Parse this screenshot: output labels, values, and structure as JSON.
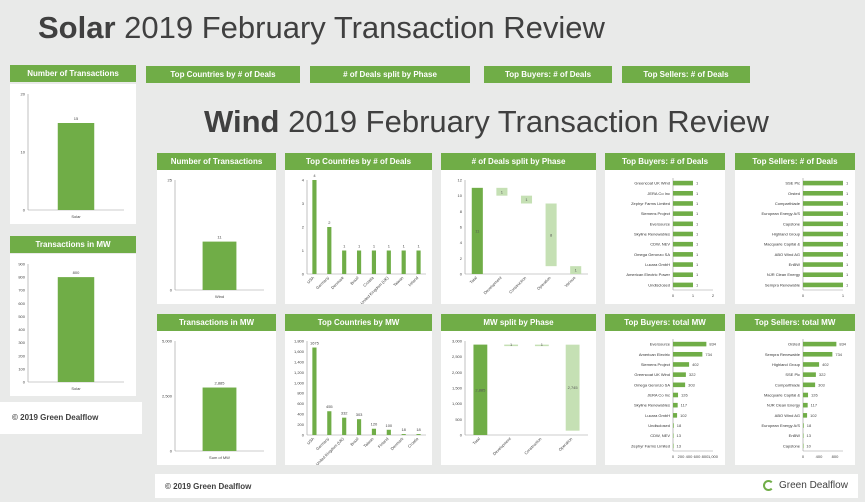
{
  "solar": {
    "title_bold": "Solar",
    "title_rest": " 2019 February Transaction Review",
    "headers": [
      "Number of Transactions",
      "Top Countries by # of Deals",
      "# of Deals split by Phase",
      "Top Buyers: # of Deals",
      "Top Sellers: # of Deals",
      "Transactions in MW"
    ],
    "footer": "© 2019 Green Dealflow"
  },
  "wind": {
    "title_bold": "Wind",
    "title_rest": " 2019 February Transaction Review",
    "headers": [
      "Number of Transactions",
      "Top Countries by # of Deals",
      "# of Deals split by Phase",
      "Top Buyers: # of Deals",
      "Top Sellers: # of Deals",
      "Transactions in MW",
      "Top Countries by MW",
      "MW split by Phase",
      "Top Buyers: total MW",
      "Top Sellers: total MW"
    ],
    "footer": "© 2019 Green Dealflow",
    "brand": "Green Dealflow"
  },
  "colors": {
    "bar": "#70ad47",
    "bar_light": "#c5e0b4",
    "header": "#70ad47"
  },
  "chart_data": [
    {
      "id": "solar_count",
      "type": "bar",
      "categories": [
        "Solar"
      ],
      "values": [
        15
      ],
      "ylim": [
        0,
        20
      ],
      "yticks": [
        0,
        10,
        20
      ]
    },
    {
      "id": "solar_mw",
      "type": "bar",
      "categories": [
        "Solar"
      ],
      "values": [
        800
      ],
      "ylim": [
        0,
        900
      ],
      "yticks": [
        0,
        100,
        200,
        300,
        400,
        500,
        600,
        700,
        800,
        900
      ]
    },
    {
      "id": "wind_count",
      "type": "bar",
      "categories": [
        "Wind"
      ],
      "values": [
        11
      ],
      "ylim": [
        0,
        25
      ],
      "yticks": [
        0,
        25
      ]
    },
    {
      "id": "wind_countries",
      "type": "bar",
      "categories": [
        "USA",
        "Germany",
        "Denmark",
        "Brazil",
        "Croatia",
        "United Kingdom (UK)",
        "Taiwan",
        "Ireland"
      ],
      "values": [
        4,
        2,
        1,
        1,
        1,
        1,
        1,
        1
      ],
      "ylim": [
        0,
        4
      ],
      "yticks": [
        0,
        1,
        2,
        3,
        4
      ]
    },
    {
      "id": "wind_phase",
      "type": "waterfall",
      "categories": [
        "Total",
        "Development",
        "Construction",
        "Operation",
        "Various"
      ],
      "values": [
        11,
        1,
        1,
        8,
        1
      ],
      "ylim": [
        0,
        12
      ],
      "yticks": [
        0,
        2,
        4,
        6,
        8,
        10,
        12
      ]
    },
    {
      "id": "wind_buyers",
      "type": "bar",
      "orientation": "horizontal",
      "categories": [
        "Greencoat UK Wind",
        "JERA Co Inc",
        "Zephyr Farms Limited",
        "Siemens Project",
        "Eversource",
        "Skyline Renewables",
        "CDW, NEV",
        "Omega Geronzo SA",
        "Lucara GmbH",
        "American Electric Power",
        "Undisclosed"
      ],
      "values": [
        1,
        1,
        1,
        1,
        1,
        1,
        1,
        1,
        1,
        1,
        1
      ],
      "xlim": [
        0,
        2
      ],
      "xticks": [
        0,
        1,
        2
      ]
    },
    {
      "id": "wind_sellers",
      "type": "bar",
      "orientation": "horizontal",
      "categories": [
        "SSE Plc",
        "Orsted",
        "Comparthiade",
        "European Energy A/S",
        "Capstone",
        "Highland Group",
        "Macquarie Capital &",
        "ABO Wind AG",
        "EnBW",
        "NJR Clean Energy",
        "Sempra Renewable"
      ],
      "values": [
        1,
        1,
        1,
        1,
        1,
        1,
        1,
        1,
        1,
        1,
        1
      ],
      "xlim": [
        0,
        1
      ],
      "xticks": [
        0,
        1
      ]
    },
    {
      "id": "wind_mw",
      "type": "bar",
      "categories": [
        "Sum of MW"
      ],
      "values": [
        2885
      ],
      "value_labels": [
        "2,885"
      ],
      "ylim": [
        0,
        5000
      ],
      "yticks": [
        0,
        2500,
        5000
      ],
      "ytick_labels": [
        "0",
        "2,500",
        "5,000"
      ]
    },
    {
      "id": "wind_countries_mw",
      "type": "bar",
      "categories": [
        "USA",
        "Germany",
        "United Kingdom (UK)",
        "Brazil",
        "Taiwan",
        "Finland",
        "Denmark",
        "Croatia"
      ],
      "values": [
        1675,
        455,
        332,
        303,
        120,
        100,
        18,
        18
      ],
      "ylim": [
        0,
        1800
      ],
      "yticks": [
        0,
        200,
        400,
        600,
        800,
        1000,
        1200,
        1400,
        1600,
        1800
      ],
      "ytick_labels": [
        "0",
        "200",
        "400",
        "600",
        "800",
        "1,000",
        "1,200",
        "1,400",
        "1,600",
        "1,800"
      ]
    },
    {
      "id": "wind_phase_mw",
      "type": "waterfall",
      "categories": [
        "Total",
        "Development",
        "Construction",
        "Operation"
      ],
      "values": [
        2885,
        1,
        1,
        2745
      ],
      "value_labels": [
        "2,885",
        "1",
        "1",
        "2,745"
      ],
      "ylim": [
        0,
        3000
      ],
      "yticks": [
        0,
        500,
        1000,
        1500,
        2000,
        2500,
        3000
      ],
      "ytick_labels": [
        "0",
        "500",
        "1,000",
        "1,500",
        "2,000",
        "2,500",
        "3,000"
      ]
    },
    {
      "id": "wind_buyers_mw",
      "type": "bar",
      "orientation": "horizontal",
      "categories": [
        "Eversource",
        "American Electric",
        "Siemens Project",
        "Greencoat UK Wind",
        "Omega Geronzo SA",
        "JERA Co Inc",
        "Skyline Renewables",
        "Lucara GmbH",
        "Undisclosed",
        "CDW, NEV",
        "Zephyr Farms Limited"
      ],
      "values": [
        834,
        734,
        402,
        322,
        303,
        126,
        117,
        102,
        18,
        13,
        13
      ],
      "xlim": [
        0,
        1000
      ],
      "xticks": [
        0,
        200,
        400,
        600,
        800,
        1000
      ],
      "xtick_labels": [
        "0",
        "200",
        "400",
        "600",
        "800",
        "1,000"
      ]
    },
    {
      "id": "wind_sellers_mw",
      "type": "bar",
      "orientation": "horizontal",
      "categories": [
        "Orsted",
        "Sempra Renewable",
        "Highland Group",
        "SSE Plc",
        "Comparthiade",
        "Macquarie Capital &",
        "NJR Clean Energy",
        "ABO Wind AG",
        "European Energy A/S",
        "EnBW",
        "Capstone"
      ],
      "values": [
        834,
        734,
        402,
        322,
        303,
        126,
        117,
        102,
        18,
        13,
        10
      ],
      "xlim": [
        0,
        1000
      ],
      "xticks": [
        0,
        400,
        800
      ]
    }
  ]
}
